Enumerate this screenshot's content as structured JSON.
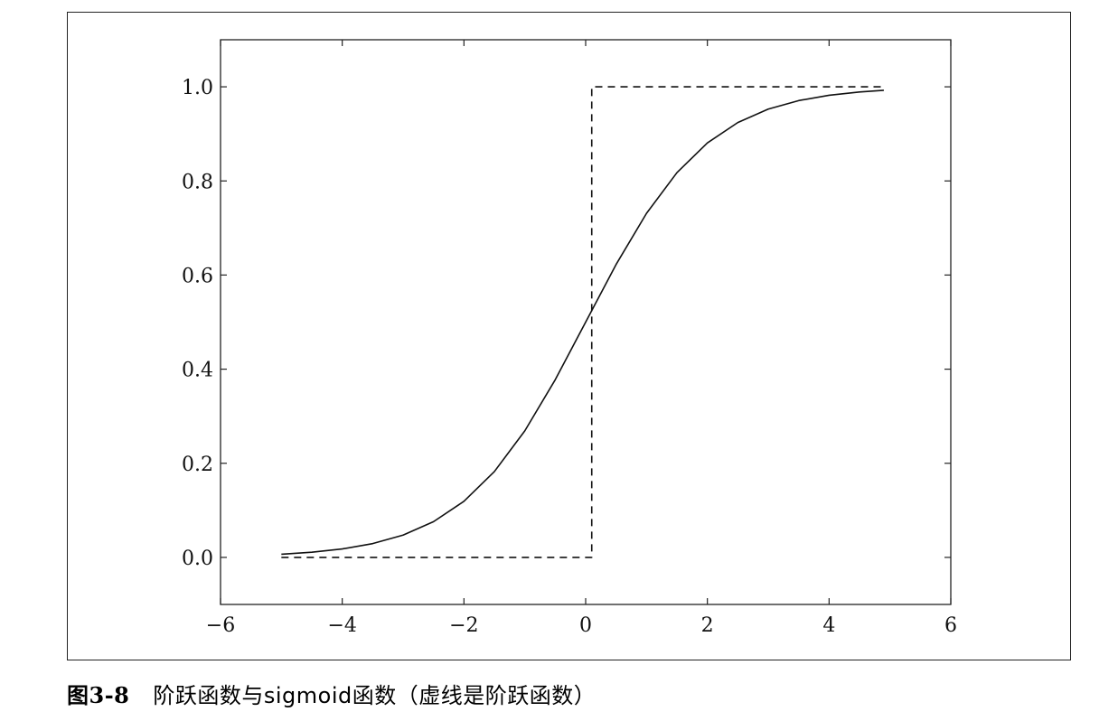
{
  "caption": {
    "number": "图3-8",
    "text": "阶跃函数与sigmoid函数（虚线是阶跃函数）"
  },
  "chart_data": {
    "type": "line",
    "title": "",
    "xlabel": "",
    "ylabel": "",
    "xlim": [
      -6,
      6
    ],
    "ylim": [
      -0.1,
      1.1
    ],
    "xticks": [
      -6,
      -4,
      -2,
      0,
      2,
      4,
      6
    ],
    "xtick_labels": [
      "−6",
      "−4",
      "−2",
      "0",
      "2",
      "4",
      "6"
    ],
    "yticks": [
      0.0,
      0.2,
      0.4,
      0.6,
      0.8,
      1.0
    ],
    "ytick_labels": [
      "0.0",
      "0.2",
      "0.4",
      "0.6",
      "0.8",
      "1.0"
    ],
    "grid": false,
    "legend": "none",
    "line_color": "#111111",
    "series": [
      {
        "style": "solid",
        "x": [
          -5.0,
          -4.5,
          -4.0,
          -3.5,
          -3.0,
          -2.5,
          -2.0,
          -1.5,
          -1.0,
          -0.5,
          0.0,
          0.5,
          1.0,
          1.5,
          2.0,
          2.5,
          3.0,
          3.5,
          4.0,
          4.5,
          4.9
        ],
        "y": [
          0.0067,
          0.011,
          0.018,
          0.0293,
          0.0474,
          0.0759,
          0.1192,
          0.1824,
          0.2689,
          0.3775,
          0.5,
          0.6225,
          0.7311,
          0.8176,
          0.8808,
          0.9241,
          0.9526,
          0.9707,
          0.982,
          0.989,
          0.9926
        ]
      },
      {
        "style": "dashed",
        "x": [
          -5.0,
          0.0,
          0.0,
          0.1,
          0.1,
          4.9
        ],
        "y": [
          0.0,
          0.0,
          0.0,
          0.0,
          1.0,
          1.0
        ]
      }
    ]
  }
}
